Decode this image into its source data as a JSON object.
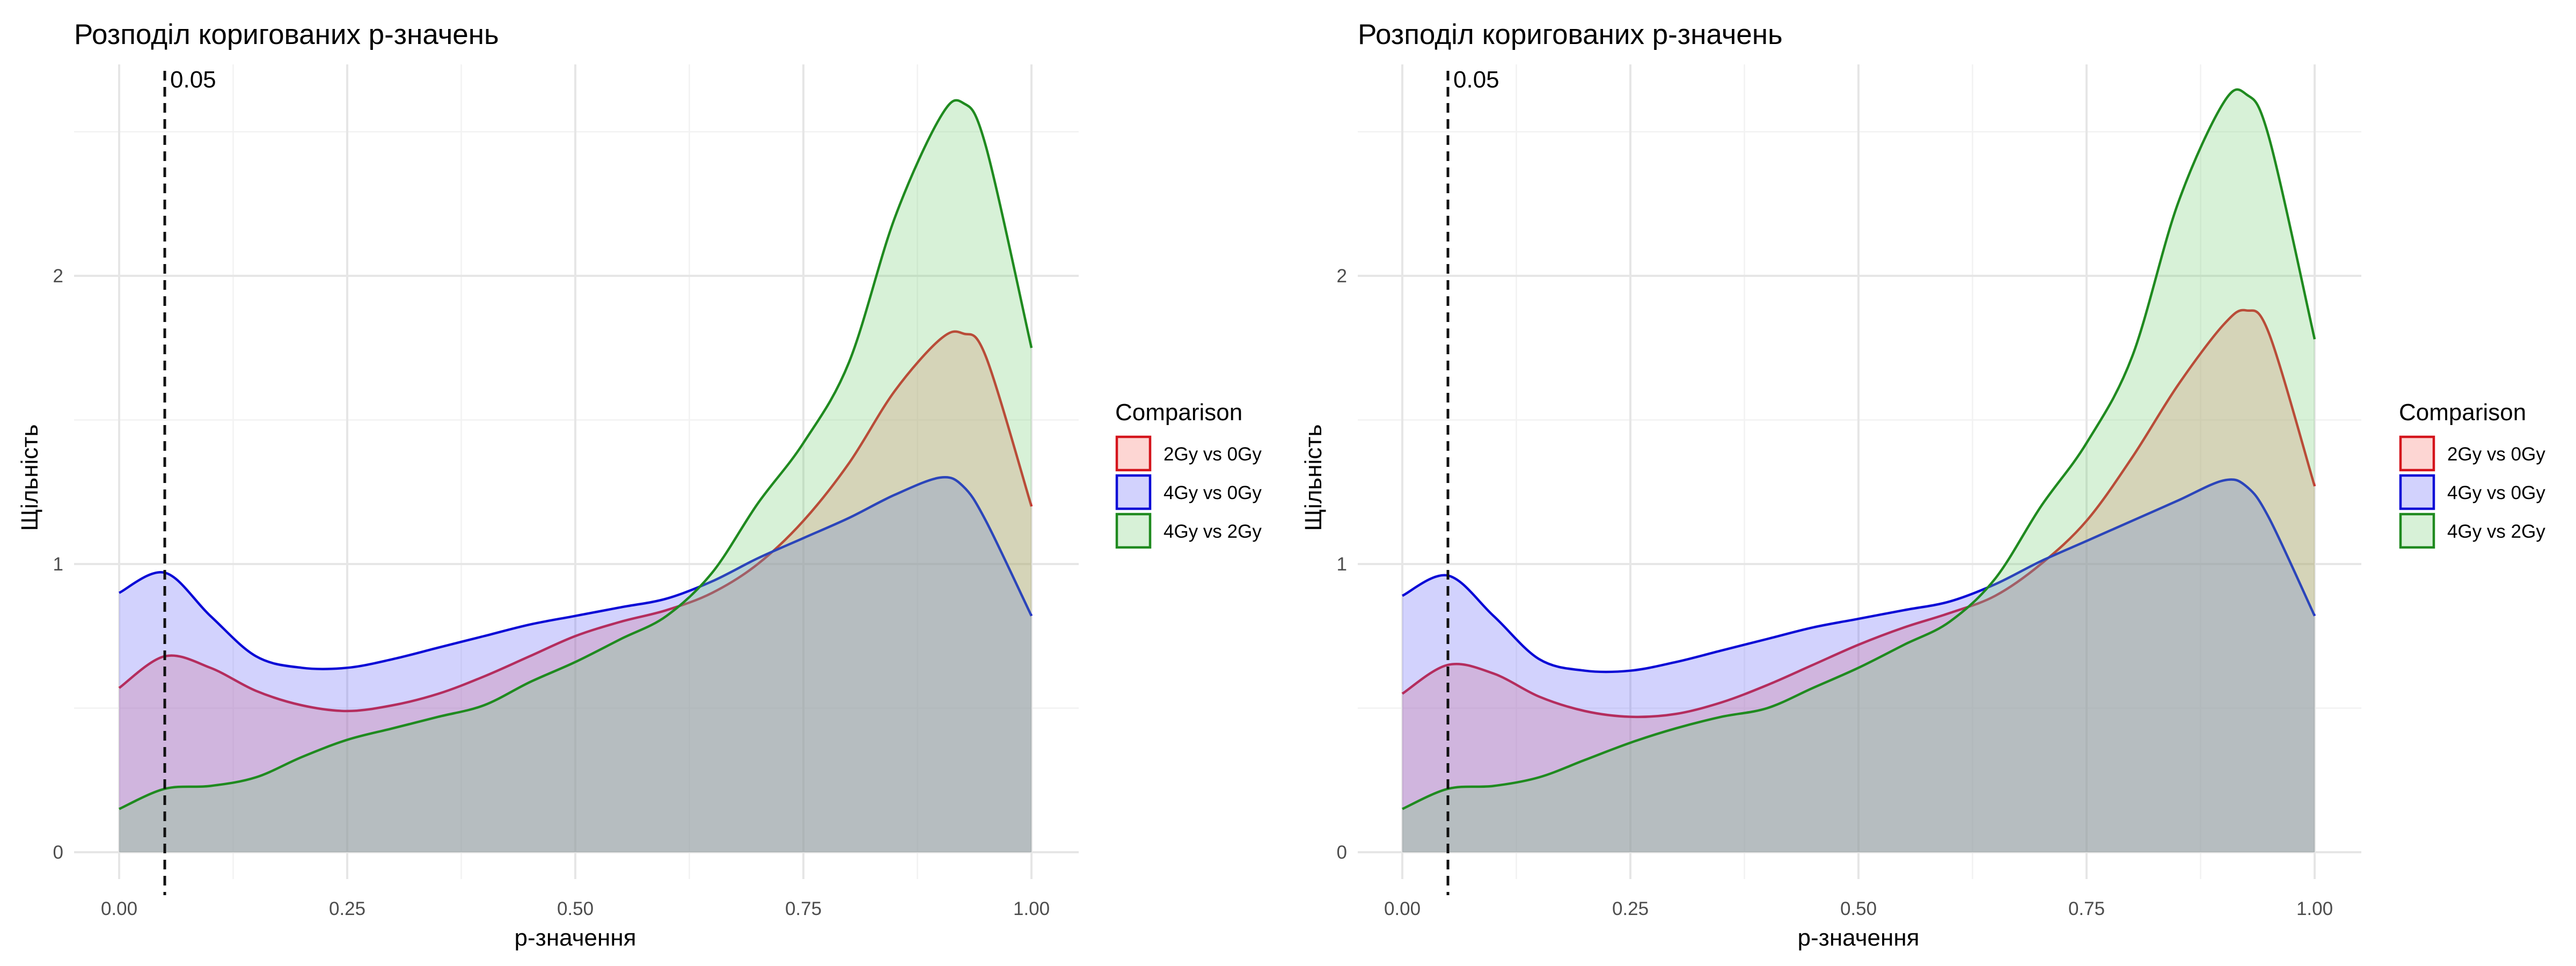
{
  "chart_data": [
    {
      "type": "area",
      "title": "Розподіл коригованих p-значень",
      "xlabel": "p-значення",
      "ylabel": "Щільність",
      "xlim": [
        0,
        1
      ],
      "ylim": [
        0,
        2.65
      ],
      "xticks": [
        0,
        0.25,
        0.5,
        0.75,
        1
      ],
      "xtick_labels": [
        "0.00",
        "0.25",
        "0.50",
        "0.75",
        "1.00"
      ],
      "yticks": [
        0,
        1,
        2
      ],
      "ytick_labels": [
        "0",
        "1",
        "2"
      ],
      "grid": true,
      "legend_title": "Comparison",
      "legend_position": "right",
      "vline": {
        "x": 0.05,
        "label": "0.05"
      },
      "x": [
        0,
        0.05,
        0.1,
        0.15,
        0.2,
        0.25,
        0.3,
        0.35,
        0.4,
        0.45,
        0.5,
        0.55,
        0.6,
        0.65,
        0.7,
        0.75,
        0.8,
        0.85,
        0.9,
        0.925,
        0.95,
        1.0
      ],
      "series": [
        {
          "name": "2Gy vs 0Gy",
          "line_color": "#d4141c",
          "fill_color": "#f8766d",
          "values": [
            0.57,
            0.68,
            0.64,
            0.56,
            0.51,
            0.49,
            0.51,
            0.55,
            0.61,
            0.68,
            0.75,
            0.8,
            0.84,
            0.9,
            1.0,
            1.15,
            1.35,
            1.6,
            1.78,
            1.8,
            1.72,
            1.2
          ]
        },
        {
          "name": "4Gy vs 0Gy",
          "line_color": "#0a0ad6",
          "fill_color": "#6a6afa",
          "values": [
            0.9,
            0.97,
            0.82,
            0.68,
            0.64,
            0.64,
            0.67,
            0.71,
            0.75,
            0.79,
            0.82,
            0.85,
            0.88,
            0.94,
            1.02,
            1.09,
            1.16,
            1.24,
            1.3,
            1.27,
            1.15,
            0.82
          ]
        },
        {
          "name": "4Gy vs 2Gy",
          "line_color": "#1f8a1f",
          "fill_color": "#7ccf7c",
          "values": [
            0.15,
            0.22,
            0.23,
            0.26,
            0.33,
            0.39,
            0.43,
            0.47,
            0.51,
            0.59,
            0.66,
            0.74,
            0.82,
            0.97,
            1.21,
            1.42,
            1.7,
            2.2,
            2.55,
            2.6,
            2.45,
            1.75
          ]
        }
      ]
    },
    {
      "type": "area",
      "title": "Розподіл коригованих p-значень",
      "xlabel": "p-значення",
      "ylabel": "Щільність",
      "xlim": [
        0,
        1
      ],
      "ylim": [
        0,
        2.65
      ],
      "xticks": [
        0,
        0.25,
        0.5,
        0.75,
        1
      ],
      "xtick_labels": [
        "0.00",
        "0.25",
        "0.50",
        "0.75",
        "1.00"
      ],
      "yticks": [
        0,
        1,
        2
      ],
      "ytick_labels": [
        "0",
        "1",
        "2"
      ],
      "grid": true,
      "legend_title": "Comparison",
      "legend_position": "right",
      "vline": {
        "x": 0.05,
        "label": "0.05"
      },
      "x": [
        0,
        0.05,
        0.1,
        0.15,
        0.2,
        0.25,
        0.3,
        0.35,
        0.4,
        0.45,
        0.5,
        0.55,
        0.6,
        0.65,
        0.7,
        0.75,
        0.8,
        0.85,
        0.9,
        0.925,
        0.95,
        1.0
      ],
      "series": [
        {
          "name": "2Gy vs 0Gy",
          "line_color": "#d4141c",
          "fill_color": "#f8766d",
          "values": [
            0.55,
            0.65,
            0.62,
            0.54,
            0.49,
            0.47,
            0.48,
            0.52,
            0.58,
            0.65,
            0.72,
            0.78,
            0.83,
            0.89,
            1.0,
            1.15,
            1.37,
            1.62,
            1.83,
            1.88,
            1.8,
            1.27
          ]
        },
        {
          "name": "4Gy vs 0Gy",
          "line_color": "#0a0ad6",
          "fill_color": "#6a6afa",
          "values": [
            0.89,
            0.96,
            0.82,
            0.67,
            0.63,
            0.63,
            0.66,
            0.7,
            0.74,
            0.78,
            0.81,
            0.84,
            0.87,
            0.93,
            1.01,
            1.08,
            1.15,
            1.22,
            1.29,
            1.27,
            1.16,
            0.82
          ]
        },
        {
          "name": "4Gy vs 2Gy",
          "line_color": "#1f8a1f",
          "fill_color": "#7ccf7c",
          "values": [
            0.15,
            0.22,
            0.23,
            0.26,
            0.32,
            0.38,
            0.43,
            0.47,
            0.5,
            0.57,
            0.64,
            0.72,
            0.8,
            0.95,
            1.2,
            1.42,
            1.72,
            2.25,
            2.6,
            2.63,
            2.48,
            1.78
          ]
        }
      ]
    }
  ]
}
